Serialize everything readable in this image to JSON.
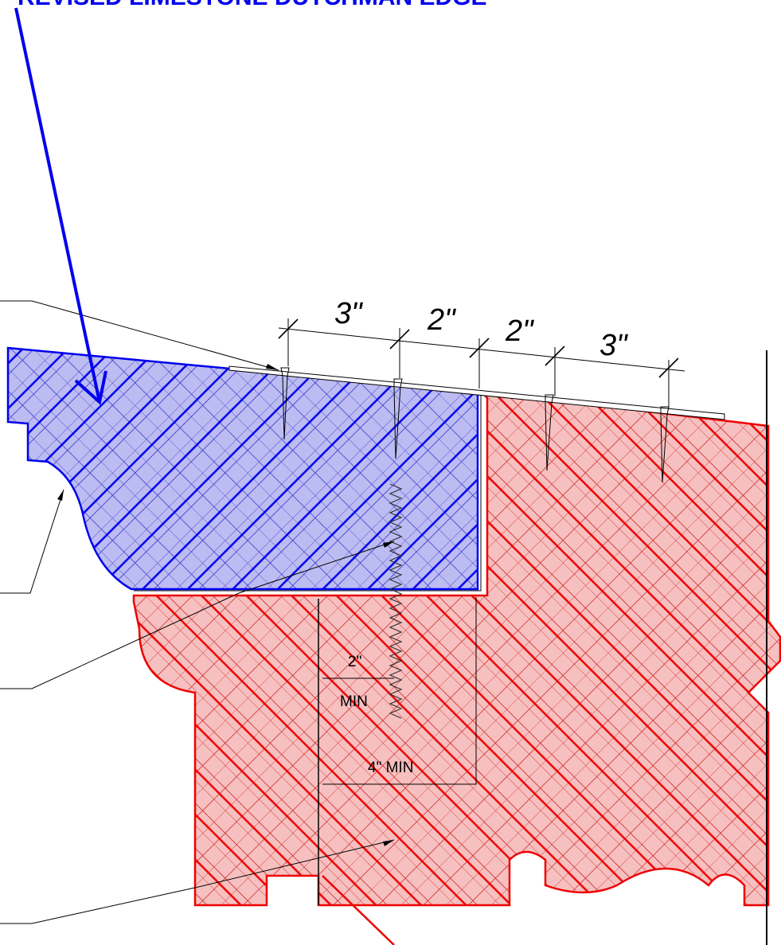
{
  "title": "REVISED LIMESTONE DUTCHMAN EDGE",
  "dimensions": [
    "3\"",
    "2\"",
    "2\"",
    "3\""
  ],
  "notes": {
    "embed_depth": "2\"",
    "embed_min": "MIN",
    "width_min": "4\" MIN"
  }
}
